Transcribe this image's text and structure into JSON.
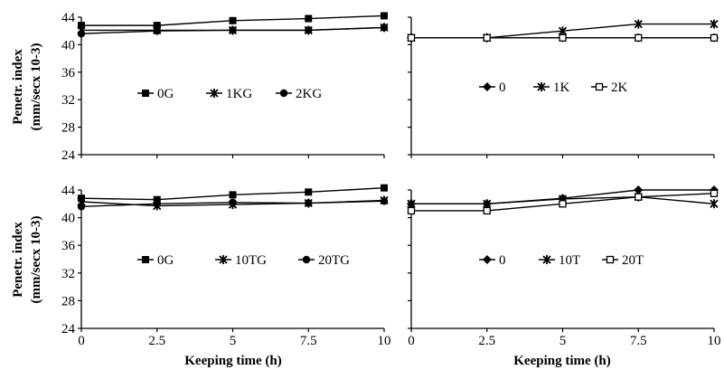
{
  "figure": {
    "ylabel_line1": "Penetr. index",
    "ylabel_line2": "(mm/secx 10-3)",
    "xlabel": "Keeping time (h)"
  },
  "chart_data": [
    {
      "type": "line",
      "x": [
        0,
        2.5,
        5,
        7.5,
        10
      ],
      "ylim": [
        24,
        44
      ],
      "yticks": [
        24,
        28,
        32,
        36,
        40,
        44
      ],
      "legend_position": "center",
      "series": [
        {
          "name": "0G",
          "marker": "square-filled",
          "values": [
            42.8,
            42.8,
            43.5,
            43.8,
            44.2
          ]
        },
        {
          "name": "1KG",
          "marker": "star",
          "values": [
            42.1,
            42.1,
            42.1,
            42.1,
            42.5
          ]
        },
        {
          "name": "2KG",
          "marker": "circle-filled",
          "values": [
            41.6,
            42.0,
            42.1,
            42.1,
            42.5
          ]
        }
      ]
    },
    {
      "type": "line",
      "x": [
        0,
        2.5,
        5,
        7.5,
        10
      ],
      "ylim": [
        24,
        44
      ],
      "legend_position": "center",
      "series": [
        {
          "name": "0",
          "marker": "diamond-filled",
          "values": [
            41.0,
            41.0,
            41.0,
            41.0,
            41.0
          ]
        },
        {
          "name": "1K",
          "marker": "star",
          "values": [
            41.0,
            41.0,
            42.0,
            43.0,
            43.0
          ]
        },
        {
          "name": "2K",
          "marker": "square-open",
          "values": [
            41.0,
            41.0,
            41.0,
            41.0,
            41.0
          ]
        }
      ]
    },
    {
      "type": "line",
      "x": [
        0,
        2.5,
        5,
        7.5,
        10
      ],
      "xticks": [
        0,
        2.5,
        5,
        7.5,
        10
      ],
      "ylim": [
        24,
        44
      ],
      "yticks": [
        24,
        28,
        32,
        36,
        40,
        44
      ],
      "legend_position": "center",
      "series": [
        {
          "name": "0G",
          "marker": "square-filled",
          "values": [
            42.8,
            42.6,
            43.3,
            43.7,
            44.3
          ]
        },
        {
          "name": "10TG",
          "marker": "star",
          "values": [
            42.3,
            41.7,
            41.9,
            42.1,
            42.5
          ]
        },
        {
          "name": "20TG",
          "marker": "circle-filled",
          "values": [
            41.6,
            42.0,
            42.2,
            42.1,
            42.4
          ]
        }
      ]
    },
    {
      "type": "line",
      "x": [
        0,
        2.5,
        5,
        7.5,
        10
      ],
      "xticks": [
        0,
        2.5,
        5,
        7.5,
        10
      ],
      "ylim": [
        24,
        44
      ],
      "legend_position": "center",
      "series": [
        {
          "name": "0",
          "marker": "diamond-filled",
          "values": [
            42.0,
            42.0,
            42.8,
            44.0,
            44.0
          ]
        },
        {
          "name": "10T",
          "marker": "star",
          "values": [
            42.0,
            42.0,
            42.7,
            43.0,
            42.0
          ]
        },
        {
          "name": "20T",
          "marker": "square-open",
          "values": [
            41.0,
            41.0,
            42.0,
            43.0,
            43.5
          ]
        }
      ]
    }
  ]
}
